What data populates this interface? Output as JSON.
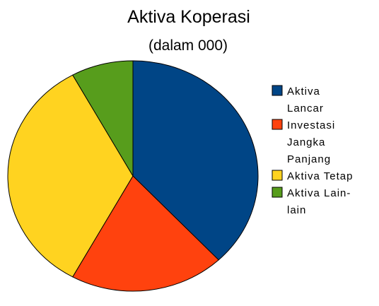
{
  "chart_data": {
    "type": "pie",
    "title": "Aktiva Koperasi",
    "subtitle": "(dalam 000)",
    "legend_position": "right",
    "slices": [
      {
        "label": "Aktiva Lancar",
        "legend_lines": [
          "Aktiva",
          "Lancar"
        ],
        "value": 38,
        "color": "#004586"
      },
      {
        "label": "Investasi Jangka Panjang",
        "legend_lines": [
          "Investasi",
          "Jangka",
          "Panjang"
        ],
        "value": 20,
        "color": "#ff420e"
      },
      {
        "label": "Aktiva Tetap",
        "legend_lines": [
          "Aktiva Tetap"
        ],
        "value": 34,
        "color": "#ffd320"
      },
      {
        "label": "Aktiva Lain-lain",
        "legend_lines": [
          "Aktiva Lain-",
          "lain"
        ],
        "value": 8,
        "color": "#579d1c"
      }
    ]
  }
}
